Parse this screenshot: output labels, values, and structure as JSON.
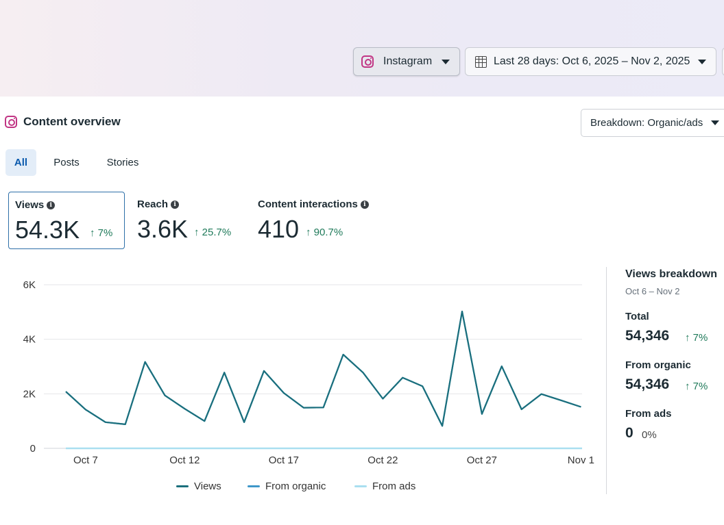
{
  "toolbar": {
    "platform_label": "Instagram",
    "date_range_label": "Last 28 days: Oct 6, 2025 – Nov 2, 2025"
  },
  "section": {
    "title": "Content overview",
    "breakdown_label": "Breakdown: Organic/ads"
  },
  "tabs": [
    {
      "label": "All",
      "selected": true
    },
    {
      "label": "Posts",
      "selected": false
    },
    {
      "label": "Stories",
      "selected": false
    }
  ],
  "metrics": [
    {
      "label": "Views",
      "value": "54.3K",
      "change": "↑ 7%",
      "selected": true
    },
    {
      "label": "Reach",
      "value": "3.6K",
      "change": "↑ 25.7%",
      "selected": false
    },
    {
      "label": "Content interactions",
      "value": "410",
      "change": "↑ 90.7%",
      "selected": false
    }
  ],
  "colors": {
    "views": "#1b6f7c",
    "organic": "#3f97c9",
    "ads": "#a9dff0",
    "positive": "#1f7a5a",
    "accent": "#0a5aad"
  },
  "chart_data": {
    "type": "line",
    "x": [
      "Oct 6",
      "Oct 7",
      "Oct 8",
      "Oct 9",
      "Oct 10",
      "Oct 11",
      "Oct 12",
      "Oct 13",
      "Oct 14",
      "Oct 15",
      "Oct 16",
      "Oct 17",
      "Oct 18",
      "Oct 19",
      "Oct 20",
      "Oct 21",
      "Oct 22",
      "Oct 23",
      "Oct 24",
      "Oct 25",
      "Oct 26",
      "Oct 27",
      "Oct 28",
      "Oct 29",
      "Oct 30",
      "Oct 31",
      "Nov 1",
      "Nov 2"
    ],
    "x_tick_labels": [
      "Oct 7",
      "Oct 12",
      "Oct 17",
      "Oct 22",
      "Oct 27",
      "Nov 1"
    ],
    "y_tick_labels": [
      "0",
      "2K",
      "4K",
      "6K"
    ],
    "ylim": [
      0,
      6000
    ],
    "grid": true,
    "legend_position": "bottom",
    "series": [
      {
        "name": "Views",
        "values": [
          2080,
          1420,
          960,
          880,
          3170,
          1940,
          1450,
          1000,
          2780,
          960,
          2840,
          2030,
          1490,
          1500,
          3440,
          2780,
          1820,
          2590,
          2280,
          820,
          5020,
          1260,
          3010,
          1430,
          1990,
          1760,
          1520,
          null
        ]
      },
      {
        "name": "From organic",
        "values": [
          2080,
          1420,
          960,
          880,
          3170,
          1940,
          1450,
          1000,
          2780,
          960,
          2840,
          2030,
          1490,
          1500,
          3440,
          2780,
          1820,
          2590,
          2280,
          820,
          5020,
          1260,
          3010,
          1430,
          1990,
          1760,
          1520,
          null
        ]
      },
      {
        "name": "From ads",
        "values": [
          0,
          0,
          0,
          0,
          0,
          0,
          0,
          0,
          0,
          0,
          0,
          0,
          0,
          0,
          0,
          0,
          0,
          0,
          0,
          0,
          0,
          0,
          0,
          0,
          0,
          0,
          0,
          0
        ]
      }
    ]
  },
  "breakdown_panel": {
    "title": "Views breakdown",
    "period": "Oct 6 – Nov 2",
    "total_label": "Total",
    "total_value": "54,346",
    "total_change": "↑ 7%",
    "organic_label": "From organic",
    "organic_value": "54,346",
    "organic_change": "↑ 7%",
    "ads_label": "From ads",
    "ads_value": "0",
    "ads_change": "0%"
  }
}
